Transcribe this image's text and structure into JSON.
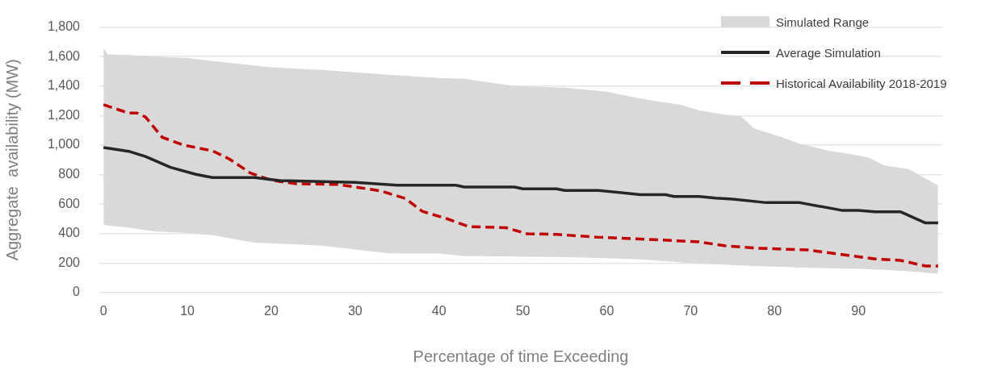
{
  "chart_data": {
    "type": "line",
    "xlabel": "Percentage of time Exceeding",
    "ylabel": "Aggregate  availability (MW)",
    "xlim": [
      -0.5,
      100
    ],
    "xticks": [
      0,
      10,
      20,
      30,
      40,
      50,
      60,
      70,
      80,
      90
    ],
    "ylim": [
      0,
      1800
    ],
    "yticks": [
      0,
      200,
      400,
      600,
      800,
      {
        "value": 1000,
        "label": "1,000"
      },
      {
        "value": 1200,
        "label": "1,200"
      },
      {
        "value": 1400,
        "label": "1,400"
      },
      {
        "value": 1600,
        "label": "1,600"
      },
      {
        "value": 1800,
        "label": "1,800"
      }
    ],
    "grid": "y",
    "legend": "top right",
    "marker": "none",
    "series": [
      {
        "name": "Simulated Range",
        "type": "line",
        "color": "#d9d9d9",
        "x": [
          0,
          0.5,
          3,
          6,
          10,
          13,
          18,
          20,
          26,
          34,
          40,
          43,
          49,
          55,
          60,
          64,
          69,
          71,
          74,
          76,
          77.5,
          81,
          83,
          86.5,
          89,
          91.3,
          93,
          96,
          99.5
        ],
        "values": [
          null,
          null,
          null,
          null,
          null,
          null,
          null,
          null,
          null,
          null,
          null,
          null,
          null,
          null,
          null,
          null,
          null,
          null,
          null,
          null,
          null,
          null,
          null,
          null,
          null,
          null,
          null,
          null,
          null
        ],
        "upper": [
          1660,
          1615,
          1610,
          1600,
          1590,
          1570,
          1540,
          1528,
          1510,
          1477,
          1455,
          1450,
          1400,
          1390,
          1362,
          1315,
          1270,
          1235,
          1208,
          1195,
          1115,
          1050,
          1010,
          960,
          940,
          914,
          863,
          837,
          726
        ],
        "lower": [
          461,
          455,
          440,
          415,
          405,
          389,
          339,
          335,
          318,
          266,
          265,
          249,
          245,
          240,
          233,
          225,
          205,
          197,
          190,
          185,
          180,
          175,
          170,
          165,
          162,
          158,
          155,
          145,
          128
        ]
      },
      {
        "name": "Average Simulation",
        "type": "line",
        "color": "#262626",
        "line_style": "solid",
        "x": [
          0,
          3,
          5,
          8,
          11,
          13,
          18,
          21,
          30,
          35,
          42,
          43,
          49,
          50,
          54,
          55,
          59,
          64,
          67,
          68,
          71,
          73,
          75,
          79,
          83,
          88,
          90,
          92,
          95,
          98,
          99.5
        ],
        "values": [
          984,
          958,
          923,
          849,
          802,
          780,
          780,
          759,
          747,
          728,
          728,
          716,
          716,
          704,
          704,
          693,
          693,
          664,
          664,
          652,
          652,
          641,
          634,
          610,
          610,
          558,
          558,
          548,
          548,
          472,
          472
        ]
      },
      {
        "name": "Historical Availability 2018-2019",
        "type": "line",
        "color": "#c00000",
        "line_style": "dashed",
        "x": [
          0,
          3,
          4,
          5,
          7,
          9.5,
          13,
          15,
          17.5,
          20,
          23,
          28,
          30,
          33,
          36,
          38,
          41,
          43.5,
          48,
          50.5,
          54,
          59,
          65,
          71,
          74,
          78,
          84,
          87,
          92,
          95,
          98,
          99.5
        ],
        "values": [
          1274,
          1217,
          1217,
          1191,
          1053,
          1001,
          961,
          906,
          811,
          762,
          738,
          733,
          716,
          690,
          638,
          551,
          500,
          448,
          440,
          399,
          395,
          375,
          361,
          344,
          318,
          301,
          289,
          266,
          228,
          219,
          180,
          180
        ]
      }
    ]
  }
}
